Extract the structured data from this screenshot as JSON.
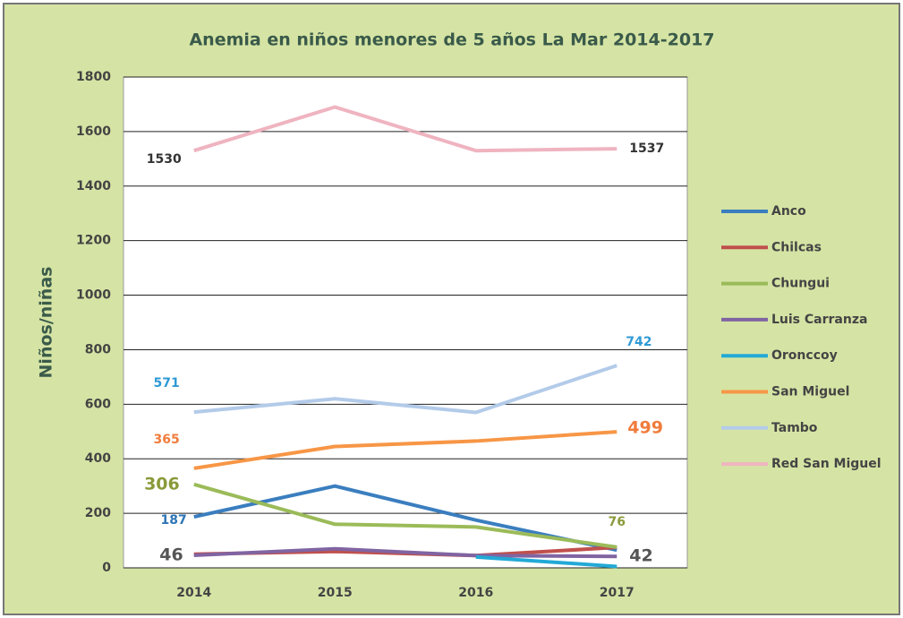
{
  "chart_data": {
    "type": "line",
    "title": "Anemia en niños menores de 5 años La Mar 2014-2017",
    "y_label": "Niños/niñas",
    "categories": [
      "2014",
      "2015",
      "2016",
      "2017"
    ],
    "ylim": [
      0,
      1800
    ],
    "yticks": [
      0,
      200,
      400,
      600,
      800,
      1000,
      1200,
      1400,
      1600,
      1800
    ],
    "grid": true,
    "legend": "right",
    "series": [
      {
        "name": "Anco",
        "color": "#3a7ebf",
        "values": [
          187,
          300,
          175,
          65
        ],
        "value_labels": [
          "187",
          null,
          null,
          null
        ]
      },
      {
        "name": "Chilcas",
        "color": "#c0504d",
        "values": [
          50,
          60,
          45,
          75
        ],
        "value_labels": [
          null,
          null,
          null,
          null
        ]
      },
      {
        "name": "Chungui",
        "color": "#9bbb59",
        "values": [
          306,
          160,
          150,
          76
        ],
        "value_labels": [
          "306",
          null,
          null,
          "76"
        ]
      },
      {
        "name": "Luis Carranza",
        "color": "#8064a2",
        "values": [
          46,
          70,
          45,
          42
        ],
        "value_labels": [
          "46",
          null,
          null,
          "42"
        ]
      },
      {
        "name": "Oronccoy",
        "color": "#23a9d6",
        "values": [
          null,
          null,
          40,
          5
        ],
        "value_labels": [
          null,
          null,
          null,
          null
        ]
      },
      {
        "name": "San Miguel",
        "color": "#f79646",
        "values": [
          365,
          445,
          465,
          499
        ],
        "value_labels": [
          "365",
          null,
          null,
          "499"
        ]
      },
      {
        "name": "Tambo",
        "color": "#b3cbe9",
        "values": [
          571,
          620,
          570,
          742
        ],
        "value_labels": [
          "571",
          null,
          null,
          "742"
        ]
      },
      {
        "name": "Red San Miguel",
        "color": "#efb4c0",
        "values": [
          1530,
          1690,
          1530,
          1537
        ],
        "value_labels": [
          "1530",
          null,
          null,
          "1537"
        ]
      }
    ]
  }
}
